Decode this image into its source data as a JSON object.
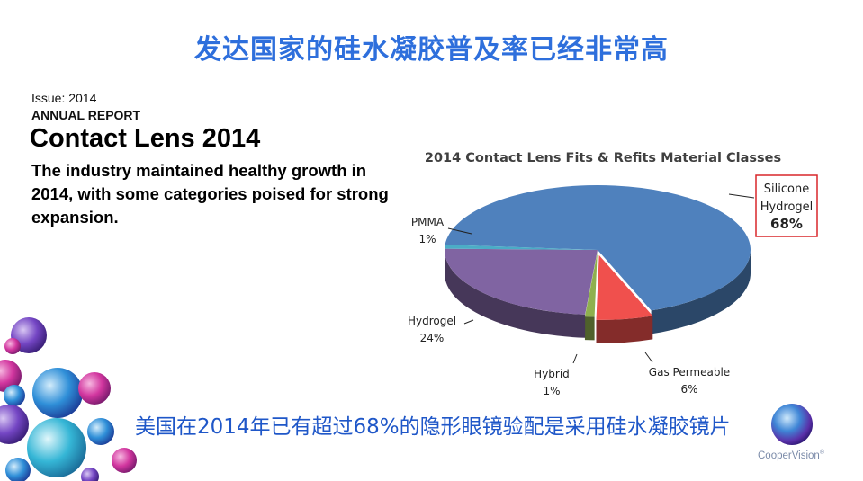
{
  "slide": {
    "title": "发达国家的硅水凝胶普及率已经非常高",
    "issue": "Issue: 2014",
    "report_label": "ANNUAL REPORT",
    "headline": "Contact Lens 2014",
    "summary": "The industry maintained healthy growth in 2014, with some categories poised for strong expansion.",
    "bottom_text": "美国在2014年已有超过68%的隐形眼镜验配是采用硅水凝胶镜片",
    "logo_text": "CooperVision",
    "logo_mark": "®"
  },
  "chart_data": {
    "type": "pie",
    "title": "2014 Contact Lens Fits & Refits Material Classes",
    "slices": [
      {
        "label": "Silicone Hydrogel",
        "label_lines": [
          "Silicone",
          "Hydrogel"
        ],
        "value_label": "68%",
        "value": 68,
        "color": "#4f81bd",
        "highlighted": true
      },
      {
        "label": "Gas Permeable",
        "label_lines": [
          "Gas Permeable"
        ],
        "value_label": "6%",
        "value": 6,
        "color": "#f0504d"
      },
      {
        "label": "Hybrid",
        "label_lines": [
          "Hybrid"
        ],
        "value_label": "1%",
        "value": 1,
        "color": "#8fb04e"
      },
      {
        "label": "Hydrogel",
        "label_lines": [
          "Hydrogel"
        ],
        "value_label": "24%",
        "value": 24,
        "color": "#8064a2"
      },
      {
        "label": "PMMA",
        "label_lines": [
          "PMMA"
        ],
        "value_label": "1%",
        "value": 1,
        "color": "#4bacc6"
      }
    ],
    "style": "3d-exploded",
    "legend": "none"
  },
  "colors": {
    "title": "#2e6fdc",
    "bottom_text": "#1f57c8",
    "highlight_box": "#d9262a"
  }
}
